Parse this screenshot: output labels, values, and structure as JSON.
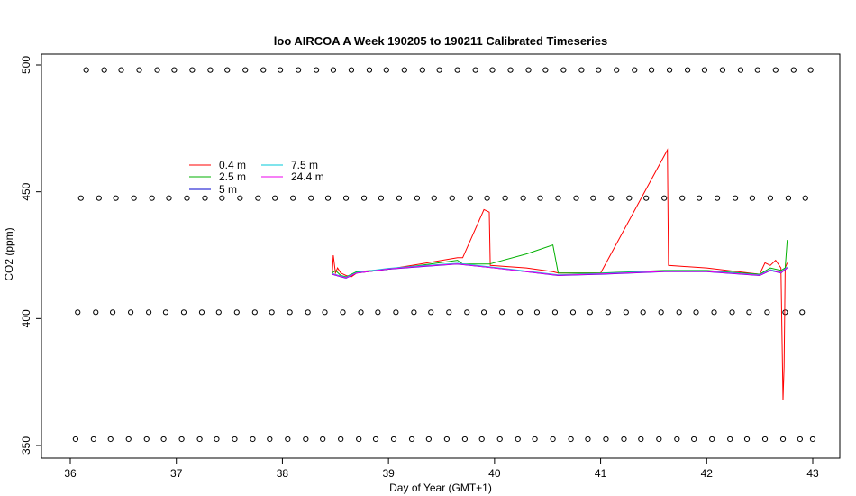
{
  "chart_data": {
    "type": "line",
    "title": "loo AIRCOA A  Week 190205 to 190211  Calibrated Timeseries",
    "xlabel": "Day of Year (GMT+1)",
    "ylabel": "CO2 (ppm)",
    "xlim": [
      36,
      43
    ],
    "ylim": [
      350,
      500
    ],
    "xticks": [
      "36",
      "37",
      "38",
      "39",
      "40",
      "41",
      "42",
      "43"
    ],
    "yticks": [
      "350",
      "400",
      "450",
      "500"
    ],
    "legend_placement": "upper-left",
    "series": [
      {
        "name": "0.4 m",
        "color": "#ff0000",
        "x": [
          38.47,
          38.48,
          38.5,
          38.52,
          38.55,
          38.6,
          38.65,
          38.7,
          39.0,
          39.3,
          39.65,
          39.7,
          39.9,
          39.95,
          39.96,
          40.3,
          40.55,
          40.6,
          41.0,
          41.63,
          41.64,
          42.0,
          42.5,
          42.55,
          42.6,
          42.65,
          42.7,
          42.72,
          42.73,
          42.74,
          42.76
        ],
        "y": [
          418,
          425,
          418,
          420,
          418,
          417,
          416.5,
          418,
          419.5,
          421.5,
          424,
          424,
          443,
          442,
          421,
          420,
          418.5,
          418,
          418,
          466.5,
          421,
          420,
          417.5,
          422,
          421,
          423,
          420,
          368,
          381,
          420,
          422
        ]
      },
      {
        "name": "2.5 m",
        "color": "#00b000",
        "x": [
          38.47,
          38.5,
          38.55,
          38.6,
          38.7,
          39.0,
          39.3,
          39.65,
          39.7,
          39.95,
          40.3,
          40.55,
          40.6,
          41.0,
          41.6,
          42.0,
          42.5,
          42.6,
          42.7,
          42.74,
          42.76
        ],
        "y": [
          418,
          419,
          417,
          416.5,
          418.5,
          419.5,
          421,
          423,
          421.5,
          421.5,
          425.5,
          429,
          418,
          418,
          419,
          419,
          417.5,
          420,
          419,
          420,
          431
        ]
      },
      {
        "name": "5 m",
        "color": "#0000cc",
        "x": [
          38.47,
          38.55,
          38.6,
          38.7,
          39.0,
          39.3,
          39.65,
          40.0,
          40.6,
          41.0,
          41.6,
          42.0,
          42.5,
          42.6,
          42.7,
          42.76
        ],
        "y": [
          417.5,
          416.5,
          416,
          418,
          419.5,
          420.5,
          421.5,
          420,
          417,
          417.5,
          418.5,
          418.5,
          417,
          419,
          418,
          420
        ]
      },
      {
        "name": "7.5 m",
        "color": "#00c8d8",
        "x": [
          38.47,
          38.55,
          38.6,
          38.7,
          39.0,
          39.3,
          39.65,
          40.0,
          40.6,
          41.0,
          41.6,
          42.0,
          42.5,
          42.6,
          42.7,
          42.76
        ],
        "y": [
          417.8,
          416.8,
          416.3,
          418.2,
          419.8,
          420.8,
          421.8,
          420.2,
          417.3,
          417.8,
          418.8,
          418.8,
          417.3,
          419.3,
          418.3,
          420.3
        ]
      },
      {
        "name": "24.4 m",
        "color": "#ee00ee",
        "x": [
          38.47,
          38.55,
          38.6,
          38.7,
          39.0,
          39.3,
          39.65,
          40.0,
          40.6,
          41.0,
          41.6,
          42.0,
          42.5,
          42.6,
          42.7,
          42.76
        ],
        "y": [
          417.6,
          416.6,
          416.1,
          418,
          419.6,
          420.6,
          421.6,
          420,
          417.1,
          417.6,
          418.6,
          418.6,
          417.1,
          419.1,
          418.1,
          420.1
        ]
      }
    ],
    "reference_points": [
      {
        "level": 498,
        "x": [
          36.15,
          36.32,
          36.48,
          36.65,
          36.82,
          36.98,
          37.15,
          37.32,
          37.48,
          37.65,
          37.82,
          37.98,
          38.15,
          38.32,
          38.48,
          38.65,
          38.82,
          38.98,
          39.15,
          39.32,
          39.48,
          39.65,
          39.82,
          39.98,
          40.15,
          40.32,
          40.48,
          40.65,
          40.82,
          40.98,
          41.15,
          41.32,
          41.48,
          41.65,
          41.82,
          41.98,
          42.15,
          42.32,
          42.48,
          42.65,
          42.82,
          42.98
        ]
      },
      {
        "level": 447.5,
        "x": [
          36.1,
          36.27,
          36.43,
          36.6,
          36.77,
          36.93,
          37.1,
          37.27,
          37.43,
          37.6,
          37.77,
          37.93,
          38.1,
          38.27,
          38.43,
          38.6,
          38.77,
          38.93,
          39.1,
          39.27,
          39.43,
          39.6,
          39.77,
          39.93,
          40.1,
          40.27,
          40.43,
          40.6,
          40.77,
          40.93,
          41.1,
          41.27,
          41.43,
          41.6,
          41.77,
          41.93,
          42.1,
          42.27,
          42.43,
          42.6,
          42.77,
          42.93
        ]
      },
      {
        "level": 402.5,
        "x": [
          36.07,
          36.24,
          36.4,
          36.57,
          36.74,
          36.9,
          37.07,
          37.24,
          37.4,
          37.57,
          37.74,
          37.9,
          38.07,
          38.24,
          38.4,
          38.57,
          38.74,
          38.9,
          39.07,
          39.24,
          39.4,
          39.57,
          39.74,
          39.9,
          40.07,
          40.24,
          40.4,
          40.57,
          40.74,
          40.9,
          41.07,
          41.24,
          41.4,
          41.57,
          41.74,
          41.9,
          42.07,
          42.24,
          42.4,
          42.57,
          42.74,
          42.9
        ]
      },
      {
        "level": 352.5,
        "x": [
          36.05,
          36.22,
          36.38,
          36.55,
          36.72,
          36.88,
          37.05,
          37.22,
          37.38,
          37.55,
          37.72,
          37.88,
          38.05,
          38.22,
          38.38,
          38.55,
          38.72,
          38.88,
          39.05,
          39.22,
          39.38,
          39.55,
          39.72,
          39.88,
          40.05,
          40.22,
          40.38,
          40.55,
          40.72,
          40.88,
          41.05,
          41.22,
          41.38,
          41.55,
          41.72,
          41.88,
          42.05,
          42.22,
          42.38,
          42.55,
          42.72,
          42.88,
          43.0
        ]
      }
    ]
  }
}
